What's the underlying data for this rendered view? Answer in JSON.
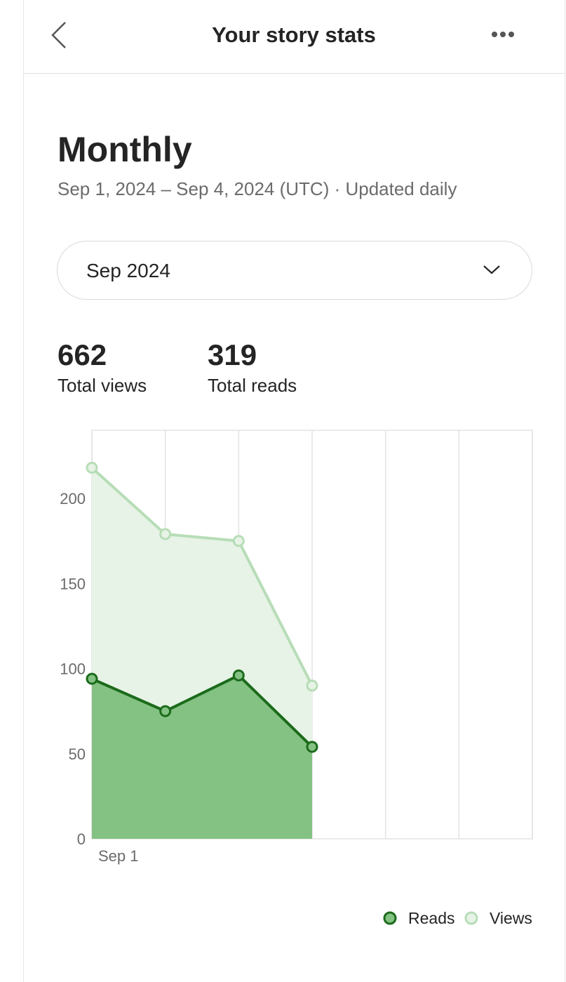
{
  "header": {
    "title": "Your story stats"
  },
  "section": {
    "title": "Monthly",
    "subtitle": "Sep 1, 2024 – Sep 4, 2024 (UTC) · Updated daily"
  },
  "dropdown": {
    "selected": "Sep 2024"
  },
  "stats": [
    {
      "value": 662,
      "label": "Total views"
    },
    {
      "value": 319,
      "label": "Total reads"
    }
  ],
  "chart_data": {
    "type": "area",
    "categories": [
      "Sep 1",
      null,
      null,
      null,
      null,
      null,
      null
    ],
    "series": [
      {
        "name": "Reads",
        "color": "#1b6b1b",
        "fill": "#84c284",
        "values": [
          94,
          75,
          96,
          54,
          null,
          null,
          null
        ]
      },
      {
        "name": "Views",
        "color": "#b7ddb7",
        "fill": "#e7f3e7",
        "values": [
          218,
          179,
          175,
          90,
          null,
          null,
          null
        ]
      }
    ],
    "ylim": [
      0,
      240
    ],
    "yticks": [
      0,
      50,
      100,
      150,
      200
    ],
    "grid": true,
    "legend": "bottom-right"
  }
}
